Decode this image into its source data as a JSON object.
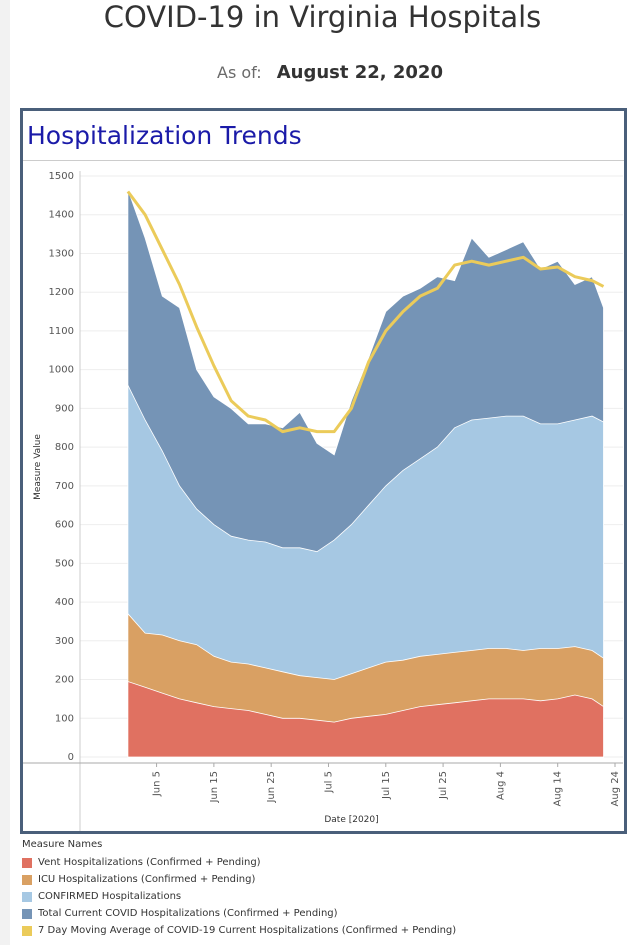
{
  "page": {
    "title": "COVID-19 in Virginia Hospitals",
    "asof_label": "As of:",
    "asof_date": "August 22, 2020"
  },
  "panel": {
    "title": "Hospitalization Trends"
  },
  "legend": {
    "title": "Measure Names",
    "items": [
      {
        "label": "Vent Hospitalizations (Confirmed + Pending)",
        "color": "#e07161"
      },
      {
        "label": "ICU Hospitalizations (Confirmed + Pending)",
        "color": "#d9a063"
      },
      {
        "label": "CONFIRMED Hospitalizations",
        "color": "#a6c8e3"
      },
      {
        "label": "Total Current COVID Hospitalizations (Confirmed + Pending)",
        "color": "#7594b6"
      },
      {
        "label": "7 Day Moving Average of COVID-19 Current Hospitalizations (Confirmed + Pending)",
        "color": "#ebcb5a"
      }
    ]
  },
  "chart_data": {
    "type": "area",
    "title": "",
    "xlabel": "Date [2020]",
    "ylabel": "Measure Value",
    "ylim": [
      0,
      1500
    ],
    "yticks": [
      0,
      100,
      200,
      300,
      400,
      500,
      600,
      700,
      800,
      900,
      1000,
      1100,
      1200,
      1300,
      1400,
      1500
    ],
    "xlim": [
      "2020-05-27",
      "2020-08-24"
    ],
    "xticks": [
      {
        "date": "2020-06-05",
        "label": "Jun 5"
      },
      {
        "date": "2020-06-15",
        "label": "Jun 15"
      },
      {
        "date": "2020-06-25",
        "label": "Jun 25"
      },
      {
        "date": "2020-07-05",
        "label": "Jul 5"
      },
      {
        "date": "2020-07-15",
        "label": "Jul 15"
      },
      {
        "date": "2020-07-25",
        "label": "Jul 25"
      },
      {
        "date": "2020-08-04",
        "label": "Aug 4"
      },
      {
        "date": "2020-08-14",
        "label": "Aug 14"
      },
      {
        "date": "2020-08-24",
        "label": "Aug 24"
      }
    ],
    "grid": true,
    "legend_position": "bottom-left",
    "x": [
      "2020-05-31",
      "2020-06-03",
      "2020-06-06",
      "2020-06-09",
      "2020-06-12",
      "2020-06-15",
      "2020-06-18",
      "2020-06-21",
      "2020-06-24",
      "2020-06-27",
      "2020-06-30",
      "2020-07-03",
      "2020-07-06",
      "2020-07-09",
      "2020-07-12",
      "2020-07-15",
      "2020-07-18",
      "2020-07-21",
      "2020-07-24",
      "2020-07-27",
      "2020-07-30",
      "2020-08-02",
      "2020-08-05",
      "2020-08-08",
      "2020-08-11",
      "2020-08-14",
      "2020-08-17",
      "2020-08-20",
      "2020-08-22"
    ],
    "series": [
      {
        "name": "Vent Hospitalizations (Confirmed + Pending)",
        "color": "#e07161",
        "values": [
          195,
          180,
          165,
          150,
          140,
          130,
          125,
          120,
          110,
          100,
          100,
          95,
          90,
          100,
          105,
          110,
          120,
          130,
          135,
          140,
          145,
          150,
          150,
          150,
          145,
          150,
          160,
          150,
          130
        ]
      },
      {
        "name": "ICU Hospitalizations (Confirmed + Pending)",
        "color": "#d9a063",
        "values": [
          370,
          320,
          315,
          300,
          290,
          260,
          245,
          240,
          230,
          220,
          210,
          205,
          200,
          215,
          230,
          245,
          250,
          260,
          265,
          270,
          275,
          280,
          280,
          275,
          280,
          280,
          285,
          275,
          255
        ]
      },
      {
        "name": "CONFIRMED Hospitalizations",
        "color": "#a6c8e3",
        "values": [
          960,
          870,
          790,
          700,
          640,
          600,
          570,
          560,
          555,
          540,
          540,
          530,
          560,
          600,
          650,
          700,
          740,
          770,
          800,
          850,
          870,
          875,
          880,
          880,
          860,
          860,
          870,
          880,
          865
        ]
      },
      {
        "name": "Total Current COVID Hospitalizations (Confirmed + Pending)",
        "color": "#7594b6",
        "values": [
          1465,
          1340,
          1190,
          1160,
          1000,
          930,
          900,
          860,
          860,
          850,
          890,
          810,
          780,
          920,
          1030,
          1150,
          1190,
          1210,
          1240,
          1230,
          1340,
          1290,
          1310,
          1330,
          1260,
          1280,
          1220,
          1240,
          1160
        ]
      },
      {
        "name": "7 Day Moving Average of COVID-19 Current Hospitalizations (Confirmed + Pending)",
        "color": "#ebcb5a",
        "values": [
          1460,
          1400,
          1310,
          1220,
          1110,
          1010,
          920,
          880,
          870,
          840,
          850,
          840,
          840,
          900,
          1020,
          1100,
          1150,
          1190,
          1210,
          1270,
          1280,
          1270,
          1280,
          1290,
          1260,
          1265,
          1240,
          1230,
          1215
        ]
      }
    ]
  }
}
